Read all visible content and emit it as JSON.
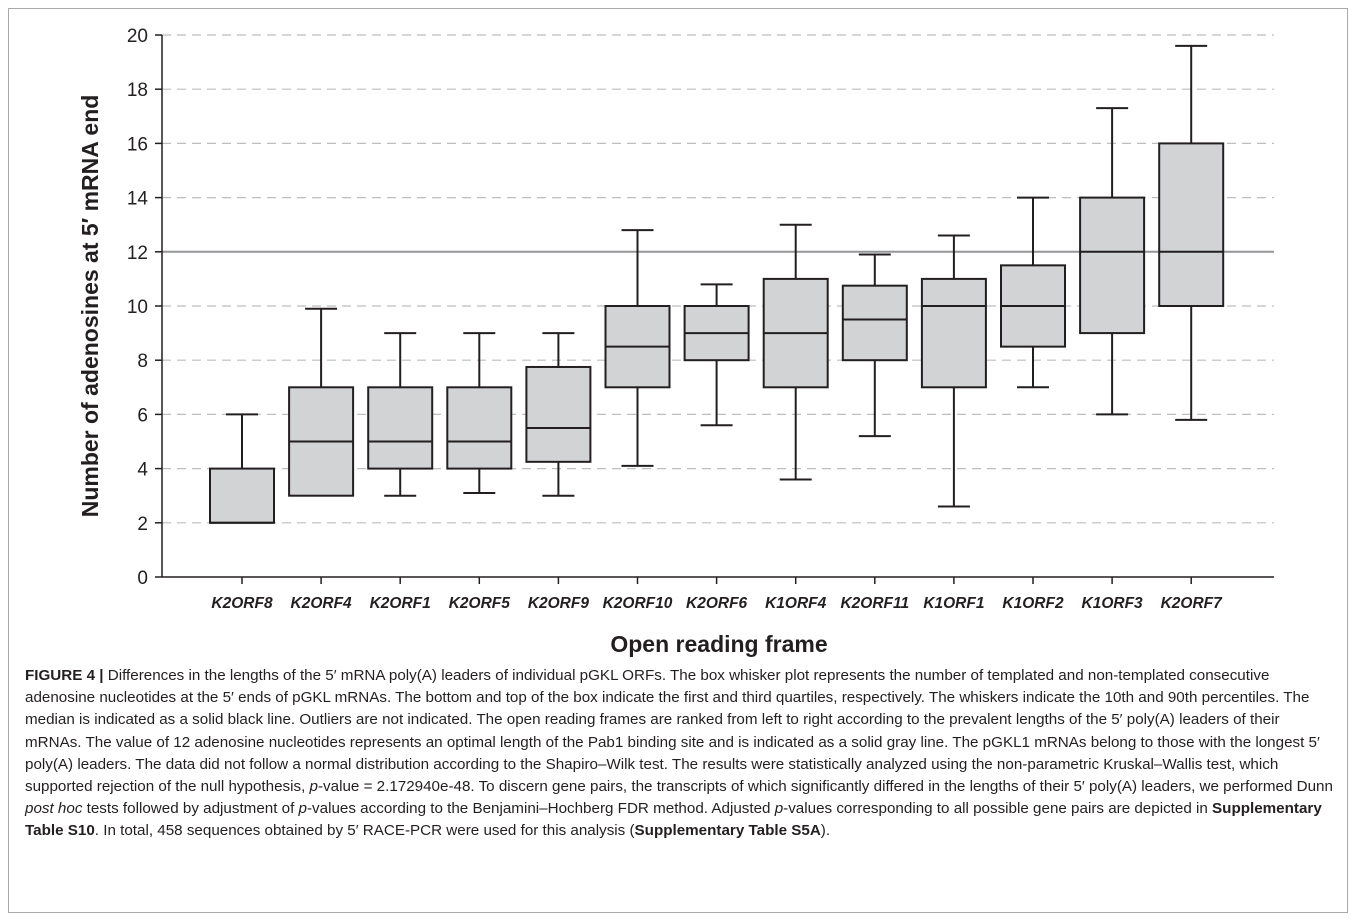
{
  "chart_data": {
    "type": "box",
    "ylabel": "Number of adenosines at 5′ mRNA end",
    "xlabel": "Open reading frame",
    "ylim": [
      0,
      20
    ],
    "yticks": [
      "0",
      "2",
      "4",
      "6",
      "8",
      "10",
      "12",
      "14",
      "16",
      "18",
      "20"
    ],
    "reference_line": 12,
    "grid": "horizontal dashed",
    "categories": [
      "K2ORF8",
      "K2ORF4",
      "K2ORF1",
      "K2ORF5",
      "K2ORF9",
      "K2ORF10",
      "K2ORF6",
      "K1ORF4",
      "K2ORF11",
      "K1ORF1",
      "K1ORF2",
      "K1ORF3",
      "K2ORF7"
    ],
    "boxes": [
      {
        "whisker_low": 2.0,
        "q1": 2.0,
        "median": 2.0,
        "q3": 4.0,
        "whisker_high": 6.0
      },
      {
        "whisker_low": 3.0,
        "q1": 3.0,
        "median": 5.0,
        "q3": 7.0,
        "whisker_high": 9.9
      },
      {
        "whisker_low": 3.0,
        "q1": 4.0,
        "median": 5.0,
        "q3": 7.0,
        "whisker_high": 9.0
      },
      {
        "whisker_low": 3.1,
        "q1": 4.0,
        "median": 5.0,
        "q3": 7.0,
        "whisker_high": 9.0
      },
      {
        "whisker_low": 3.0,
        "q1": 4.25,
        "median": 5.5,
        "q3": 7.75,
        "whisker_high": 9.0
      },
      {
        "whisker_low": 4.1,
        "q1": 7.0,
        "median": 8.5,
        "q3": 10.0,
        "whisker_high": 12.8
      },
      {
        "whisker_low": 5.6,
        "q1": 8.0,
        "median": 9.0,
        "q3": 10.0,
        "whisker_high": 10.8
      },
      {
        "whisker_low": 3.6,
        "q1": 7.0,
        "median": 9.0,
        "q3": 11.0,
        "whisker_high": 13.0
      },
      {
        "whisker_low": 5.2,
        "q1": 8.0,
        "median": 9.5,
        "q3": 10.75,
        "whisker_high": 11.9
      },
      {
        "whisker_low": 2.6,
        "q1": 7.0,
        "median": 10.0,
        "q3": 11.0,
        "whisker_high": 12.6
      },
      {
        "whisker_low": 7.0,
        "q1": 8.5,
        "median": 10.0,
        "q3": 11.5,
        "whisker_high": 14.0
      },
      {
        "whisker_low": 6.0,
        "q1": 9.0,
        "median": 12.0,
        "q3": 14.0,
        "whisker_high": 17.3
      },
      {
        "whisker_low": 5.8,
        "q1": 10.0,
        "median": 12.0,
        "q3": 16.0,
        "whisker_high": 19.6
      }
    ],
    "colors": {
      "box_fill": "#d1d3d4",
      "box_stroke": "#231f20",
      "reference_line": "#939598",
      "grid": "#bcbec0"
    }
  },
  "caption": {
    "label": "FIGURE 4 |",
    "s1": " Differences in the lengths of the 5′ mRNA poly(A) leaders of individual pGKL ORFs. The box whisker plot represents the number of templated and non-templated consecutive adenosine nucleotides at the 5′ ends of pGKL mRNAs. The bottom and top of the box indicate the first and third quartiles, respectively. The whiskers indicate the 10th and 90th percentiles. The median is indicated as a solid black line. Outliers are not indicated. The open reading frames are ranked from left to right according to the prevalent lengths of the 5′ poly(A) leaders of their mRNAs. The value of 12 adenosine nucleotides represents an optimal length of the Pab1 binding site and is indicated as a solid gray line. The pGKL1 mRNAs belong to those with the longest 5′ poly(A) leaders. The data did not follow a normal distribution according to the Shapiro–Wilk test. The results were statistically analyzed using the non-parametric Kruskal–Wallis test, which supported rejection of the null hypothesis, ",
    "p1": "p",
    "s2": "-value = 2.172940e-48. To discern gene pairs, the transcripts of which significantly differed in the lengths of their 5′ poly(A) leaders, we performed Dunn ",
    "posthoc": "post hoc",
    "s3": " tests followed by adjustment of ",
    "p2": "p",
    "s4": "-values according to the Benjamini–Hochberg FDR method. Adjusted ",
    "p3": "p",
    "s5": "-values corresponding to all possible gene pairs are depicted in ",
    "ref1": "Supplementary Table S10",
    "s6": ". In total, 458 sequences obtained by 5′ RACE-PCR were used for this analysis (",
    "ref2": "Supplementary Table S5A",
    "s7": ")."
  }
}
